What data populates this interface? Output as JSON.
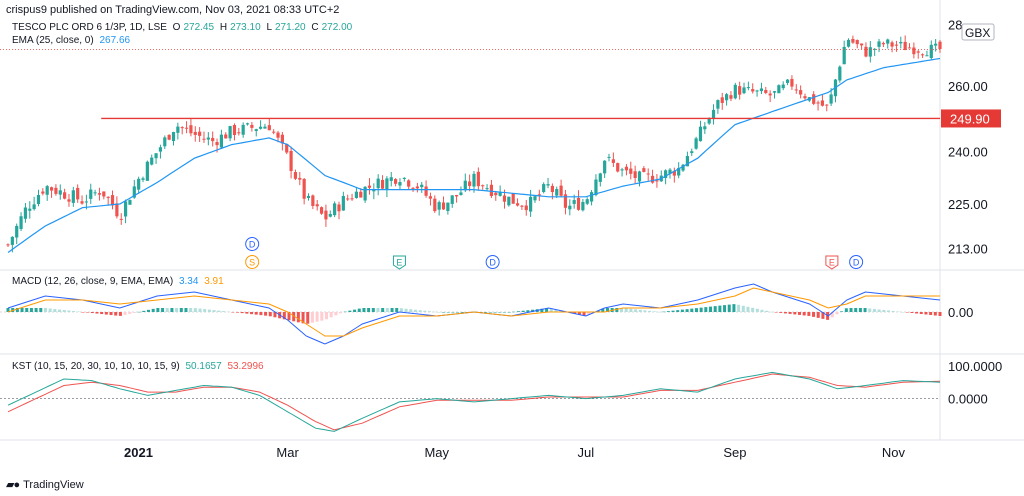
{
  "attribution": "crispus9 published on TradingView.com, Nov 03, 2021 08:33 UTC+2",
  "brand": "TradingView",
  "symbol_title": "TESCO PLC ORD 6 1/3P, 1D, LSE",
  "ohlc": {
    "o_label": "O",
    "o": "272.45",
    "h_label": "H",
    "h": "273.10",
    "l_label": "L",
    "l": "271.20",
    "c_label": "C",
    "c": "272.00"
  },
  "ema_legend": {
    "label": "EMA (25, close, 0)",
    "value": "267.66"
  },
  "currency": "GBX",
  "macd_legend": {
    "label": "MACD (12, 26, close, 9, EMA, EMA)",
    "macd": "3.34",
    "signal": "3.91"
  },
  "kst_legend": {
    "label": "KST (10, 15, 20, 30, 10, 10, 10, 15, 9)",
    "kst": "50.1657",
    "signal": "53.2996"
  },
  "colors": {
    "up": "#26a69a",
    "down": "#ef5350",
    "ema": "#2196f3",
    "macd": "#2962ff",
    "signal": "#ff9800",
    "support": "#e53935",
    "kst": "#26a69a",
    "kst_signal": "#ef5350"
  },
  "events": [
    {
      "label": "D",
      "x": 0.37,
      "row": 0,
      "color": "#2962ff"
    },
    {
      "label": "S",
      "x": 0.37,
      "row": 1,
      "color": "#ff9800"
    },
    {
      "label": "E",
      "x": 0.55,
      "row": 1,
      "color": "#26a69a"
    },
    {
      "label": "D",
      "x": 0.64,
      "row": 1,
      "color": "#2962ff"
    },
    {
      "label": "E",
      "x": 0.95,
      "row": 1,
      "color": "#ef5350"
    },
    {
      "label": "D",
      "x": 0.97,
      "row": 1,
      "color": "#2962ff"
    }
  ],
  "chart_data": [
    {
      "type": "candlestick",
      "title": "TESCO PLC ORD 6 1/3P, 1D, LSE",
      "x_ticks": [
        "2021",
        "Mar",
        "May",
        "Jul",
        "Sep",
        "Nov"
      ],
      "x_tick_positions": [
        0.14,
        0.3,
        0.46,
        0.62,
        0.78,
        0.95
      ],
      "y_ticks": [
        "28",
        "260.00",
        "249.90",
        "240.00",
        "225.00",
        "213.00"
      ],
      "y_scale": "log",
      "ylim": [
        208,
        282
      ],
      "support_level": 249.9,
      "last_price": 272.0,
      "close_path": [
        [
          0.0,
          214
        ],
        [
          0.02,
          224
        ],
        [
          0.04,
          230
        ],
        [
          0.06,
          228
        ],
        [
          0.08,
          226
        ],
        [
          0.1,
          229
        ],
        [
          0.12,
          222
        ],
        [
          0.14,
          232
        ],
        [
          0.16,
          240
        ],
        [
          0.18,
          248
        ],
        [
          0.2,
          245
        ],
        [
          0.22,
          243
        ],
        [
          0.24,
          246
        ],
        [
          0.26,
          247
        ],
        [
          0.28,
          248
        ],
        [
          0.3,
          238
        ],
        [
          0.32,
          226
        ],
        [
          0.34,
          221
        ],
        [
          0.36,
          226
        ],
        [
          0.38,
          229
        ],
        [
          0.4,
          231
        ],
        [
          0.42,
          233
        ],
        [
          0.44,
          230
        ],
        [
          0.46,
          224
        ],
        [
          0.48,
          227
        ],
        [
          0.5,
          232
        ],
        [
          0.52,
          229
        ],
        [
          0.54,
          226
        ],
        [
          0.56,
          225
        ],
        [
          0.58,
          230
        ],
        [
          0.6,
          224
        ],
        [
          0.62,
          226
        ],
        [
          0.64,
          238
        ],
        [
          0.66,
          234
        ],
        [
          0.68,
          232
        ],
        [
          0.7,
          233
        ],
        [
          0.72,
          235
        ],
        [
          0.74,
          244
        ],
        [
          0.76,
          254
        ],
        [
          0.78,
          259
        ],
        [
          0.8,
          258
        ],
        [
          0.82,
          257
        ],
        [
          0.84,
          261
        ],
        [
          0.86,
          256
        ],
        [
          0.88,
          253
        ],
        [
          0.9,
          276
        ],
        [
          0.92,
          271
        ],
        [
          0.94,
          274
        ],
        [
          0.96,
          273
        ],
        [
          0.98,
          272
        ],
        [
          1.0,
          272
        ]
      ]
    },
    {
      "type": "line",
      "title": "EMA (25, close, 0)",
      "ema_path": [
        [
          0.0,
          212
        ],
        [
          0.04,
          219
        ],
        [
          0.08,
          224
        ],
        [
          0.12,
          225
        ],
        [
          0.16,
          231
        ],
        [
          0.2,
          238
        ],
        [
          0.24,
          242
        ],
        [
          0.28,
          244
        ],
        [
          0.3,
          242
        ],
        [
          0.34,
          233
        ],
        [
          0.38,
          229
        ],
        [
          0.42,
          229
        ],
        [
          0.46,
          229
        ],
        [
          0.5,
          229
        ],
        [
          0.54,
          228
        ],
        [
          0.58,
          227
        ],
        [
          0.62,
          227
        ],
        [
          0.66,
          230
        ],
        [
          0.7,
          232
        ],
        [
          0.74,
          238
        ],
        [
          0.78,
          248
        ],
        [
          0.82,
          252
        ],
        [
          0.86,
          256
        ],
        [
          0.88,
          258
        ],
        [
          0.9,
          262
        ],
        [
          0.94,
          266
        ],
        [
          1.0,
          269
        ]
      ]
    },
    {
      "type": "bar",
      "title": "MACD (12, 26, close, 9, EMA, EMA)",
      "y_ticks": [
        "0.00"
      ],
      "ylim": [
        -10,
        10
      ],
      "macd_path": [
        [
          0.0,
          1
        ],
        [
          0.04,
          4
        ],
        [
          0.08,
          3
        ],
        [
          0.12,
          1
        ],
        [
          0.16,
          4
        ],
        [
          0.2,
          5
        ],
        [
          0.24,
          3
        ],
        [
          0.28,
          1
        ],
        [
          0.3,
          -2
        ],
        [
          0.32,
          -6
        ],
        [
          0.34,
          -8
        ],
        [
          0.36,
          -6
        ],
        [
          0.38,
          -3
        ],
        [
          0.42,
          0
        ],
        [
          0.46,
          -1
        ],
        [
          0.5,
          0
        ],
        [
          0.54,
          -1
        ],
        [
          0.58,
          1
        ],
        [
          0.62,
          -1
        ],
        [
          0.64,
          1
        ],
        [
          0.66,
          2
        ],
        [
          0.7,
          1
        ],
        [
          0.74,
          3
        ],
        [
          0.78,
          6
        ],
        [
          0.8,
          7
        ],
        [
          0.82,
          5
        ],
        [
          0.86,
          2
        ],
        [
          0.88,
          -1
        ],
        [
          0.9,
          3
        ],
        [
          0.92,
          5
        ],
        [
          0.96,
          4
        ],
        [
          1.0,
          3
        ]
      ],
      "signal_path": [
        [
          0.0,
          0
        ],
        [
          0.04,
          3
        ],
        [
          0.08,
          3
        ],
        [
          0.12,
          2
        ],
        [
          0.16,
          3
        ],
        [
          0.2,
          4
        ],
        [
          0.24,
          3
        ],
        [
          0.28,
          2
        ],
        [
          0.3,
          0
        ],
        [
          0.32,
          -3
        ],
        [
          0.34,
          -6
        ],
        [
          0.36,
          -6
        ],
        [
          0.38,
          -4
        ],
        [
          0.42,
          -1
        ],
        [
          0.46,
          -1
        ],
        [
          0.5,
          0
        ],
        [
          0.54,
          -1
        ],
        [
          0.58,
          0
        ],
        [
          0.62,
          0
        ],
        [
          0.64,
          0
        ],
        [
          0.66,
          1
        ],
        [
          0.7,
          1
        ],
        [
          0.74,
          2
        ],
        [
          0.78,
          4
        ],
        [
          0.8,
          6
        ],
        [
          0.82,
          5
        ],
        [
          0.86,
          3
        ],
        [
          0.88,
          1
        ],
        [
          0.9,
          2
        ],
        [
          0.92,
          4
        ],
        [
          0.96,
          4
        ],
        [
          1.0,
          4
        ]
      ]
    },
    {
      "type": "line",
      "title": "KST (10, 15, 20, 30, 10, 10, 10, 15, 9)",
      "y_ticks": [
        "100.0000",
        "0.0000"
      ],
      "ylim": [
        -120,
        130
      ],
      "kst_path": [
        [
          0.0,
          -20
        ],
        [
          0.03,
          20
        ],
        [
          0.06,
          60
        ],
        [
          0.09,
          55
        ],
        [
          0.12,
          30
        ],
        [
          0.15,
          10
        ],
        [
          0.18,
          25
        ],
        [
          0.21,
          40
        ],
        [
          0.24,
          35
        ],
        [
          0.27,
          10
        ],
        [
          0.3,
          -40
        ],
        [
          0.33,
          -90
        ],
        [
          0.35,
          -100
        ],
        [
          0.38,
          -60
        ],
        [
          0.42,
          -10
        ],
        [
          0.46,
          0
        ],
        [
          0.5,
          -10
        ],
        [
          0.54,
          0
        ],
        [
          0.58,
          10
        ],
        [
          0.62,
          0
        ],
        [
          0.66,
          10
        ],
        [
          0.7,
          30
        ],
        [
          0.74,
          20
        ],
        [
          0.78,
          60
        ],
        [
          0.82,
          80
        ],
        [
          0.86,
          60
        ],
        [
          0.89,
          30
        ],
        [
          0.92,
          40
        ],
        [
          0.96,
          55
        ],
        [
          1.0,
          50
        ]
      ],
      "kst_signal_path": [
        [
          0.0,
          -40
        ],
        [
          0.03,
          0
        ],
        [
          0.06,
          40
        ],
        [
          0.09,
          50
        ],
        [
          0.12,
          40
        ],
        [
          0.15,
          20
        ],
        [
          0.18,
          20
        ],
        [
          0.21,
          35
        ],
        [
          0.24,
          35
        ],
        [
          0.27,
          20
        ],
        [
          0.3,
          -20
        ],
        [
          0.33,
          -70
        ],
        [
          0.35,
          -95
        ],
        [
          0.38,
          -75
        ],
        [
          0.42,
          -25
        ],
        [
          0.46,
          -5
        ],
        [
          0.5,
          -5
        ],
        [
          0.54,
          -5
        ],
        [
          0.58,
          5
        ],
        [
          0.62,
          5
        ],
        [
          0.66,
          5
        ],
        [
          0.7,
          25
        ],
        [
          0.74,
          25
        ],
        [
          0.78,
          50
        ],
        [
          0.82,
          75
        ],
        [
          0.86,
          65
        ],
        [
          0.89,
          40
        ],
        [
          0.92,
          35
        ],
        [
          0.96,
          50
        ],
        [
          1.0,
          53
        ]
      ]
    }
  ]
}
